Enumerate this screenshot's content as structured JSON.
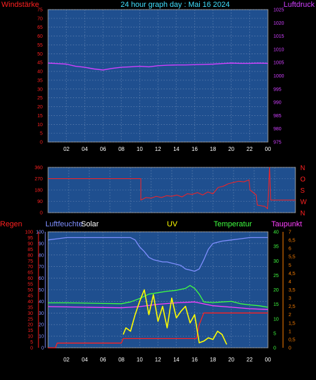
{
  "title": "24 hour graph day : Mai 16 2024",
  "colors": {
    "panel_bg": "#1f4f8f",
    "grid": "#5f80b0",
    "wind": "#ff2020",
    "gust": "#40e0ff",
    "pressure": "#d040ff",
    "direction": "#ff2020",
    "rain": "#ff2020",
    "humidity": "#7f8fff",
    "solar": "#ffffff",
    "uv": "#ffff00",
    "temperature": "#40ff40",
    "dewpoint": "#ff40ff",
    "frame": "#a0a0a0"
  },
  "x_ticks": [
    "02",
    "04",
    "06",
    "08",
    "10",
    "12",
    "14",
    "16",
    "18",
    "20",
    "22",
    "00"
  ],
  "chart_data": [
    {
      "type": "line",
      "name": "wind-pressure",
      "labels": {
        "left": "Windstärke",
        "right": "Luftdruck"
      },
      "left_axis": {
        "ticks": [
          "0",
          "5",
          "10",
          "15",
          "20",
          "25",
          "30",
          "35",
          "40",
          "45",
          "50",
          "55",
          "60",
          "65",
          "70",
          "75"
        ],
        "ylim": [
          0,
          75
        ]
      },
      "right_axis": {
        "ticks": [
          "975",
          "980",
          "985",
          "990",
          "995",
          "1000",
          "1005",
          "1010",
          "1015",
          "1020",
          "1025"
        ],
        "ylim": [
          975,
          1025
        ]
      },
      "series": [
        {
          "key": "pressure",
          "axis": "right",
          "x": [
            0,
            1,
            2,
            3,
            4,
            5,
            6,
            7,
            8,
            9,
            10,
            11,
            12,
            13,
            14,
            15,
            16,
            17,
            18,
            19,
            20,
            21,
            22,
            23,
            24
          ],
          "y": [
            1004.8,
            1004.6,
            1004.4,
            1003.6,
            1003.2,
            1002.6,
            1002.2,
            1002.8,
            1003.2,
            1003.4,
            1003.6,
            1003.4,
            1003.8,
            1004.0,
            1004.1,
            1004.1,
            1004.2,
            1004.3,
            1004.4,
            1004.6,
            1004.8,
            1004.7,
            1004.7,
            1004.8,
            1004.7
          ]
        }
      ]
    },
    {
      "type": "line",
      "name": "wind-direction",
      "left_axis": {
        "ticks": [
          "0",
          "90",
          "180",
          "270",
          "360"
        ],
        "ylim": [
          0,
          360
        ]
      },
      "right_labels": [
        "N",
        "W",
        "S",
        "O",
        "N"
      ],
      "series": [
        {
          "key": "direction",
          "x": [
            0,
            9.0,
            9.0,
            9.5,
            10,
            10.5,
            11,
            11.5,
            12,
            12.5,
            13,
            13.5,
            14,
            14.5,
            15,
            15.5,
            16,
            16.5,
            17,
            17.5,
            18,
            18.5,
            19,
            19.5,
            19.6,
            20.2,
            20.3,
            21.0,
            21.2,
            21.3,
            21.5,
            21.6,
            24
          ],
          "y": [
            270,
            270,
            100,
            120,
            115,
            130,
            120,
            135,
            130,
            140,
            125,
            150,
            145,
            160,
            140,
            165,
            150,
            200,
            210,
            230,
            240,
            250,
            245,
            260,
            180,
            140,
            60,
            50,
            40,
            30,
            360,
            100,
            100
          ]
        }
      ]
    },
    {
      "type": "line",
      "name": "rain-humidity-solar-uv-temperature-dewpoint",
      "labels": {
        "rain": "Regen",
        "humidity": "Luftfeuchte",
        "solar": "Solar",
        "uv": "UV",
        "temperature": "Temperatur",
        "dewpoint": "Taupunkt"
      },
      "rain_axis": {
        "ticks": [
          "0",
          "5",
          "10",
          "15",
          "20",
          "25",
          "30",
          "35",
          "40",
          "45",
          "50",
          "55",
          "60",
          "65",
          "70",
          "75",
          "80",
          "85",
          "90",
          "95",
          "100"
        ],
        "ylim": [
          0,
          100
        ]
      },
      "humidity_axis": {
        "ticks": [
          "0",
          "10",
          "20",
          "30",
          "40",
          "50",
          "60",
          "70",
          "80",
          "90",
          "100"
        ],
        "ylim": [
          0,
          100
        ]
      },
      "temperature_axis": {
        "ticks": [
          "0",
          "5",
          "10",
          "15",
          "20",
          "25",
          "30",
          "35",
          "40"
        ],
        "ylim": [
          0,
          40
        ]
      },
      "uv_axis": {
        "ticks": [
          "0",
          "0,5",
          "1",
          "1,5",
          "2",
          "2,5",
          "3",
          "3,5",
          "4",
          "4,5",
          "5",
          "5,5",
          "6",
          "6,5",
          "7"
        ],
        "ylim": [
          0,
          7
        ]
      },
      "series": [
        {
          "key": "humidity",
          "axis": "humidity",
          "x": [
            0,
            1,
            2,
            3,
            4,
            5,
            6,
            7,
            8,
            9,
            9.5,
            10,
            10.5,
            11,
            11.5,
            12,
            12.5,
            13,
            13.5,
            14,
            14.5,
            15,
            15.5,
            16,
            16.5,
            17,
            17.5,
            18,
            19,
            20,
            21,
            22,
            23,
            24
          ],
          "y": [
            93,
            94,
            95,
            95,
            95,
            95,
            95,
            95,
            95,
            95,
            93,
            87,
            83,
            78,
            76,
            75,
            74,
            74,
            73,
            72,
            71,
            68,
            67,
            66,
            68,
            76,
            85,
            90,
            92,
            93,
            94,
            95,
            95,
            95
          ]
        },
        {
          "key": "temperature",
          "axis": "temperature",
          "x": [
            0,
            2,
            4,
            6,
            8,
            9,
            10,
            11,
            12,
            13,
            14,
            15,
            15.5,
            16,
            16.5,
            17,
            18,
            19,
            20,
            21,
            22,
            23,
            24
          ],
          "y": [
            15.5,
            15.5,
            15.4,
            15.3,
            15.2,
            15.8,
            17.0,
            18.5,
            19.0,
            19.5,
            19.8,
            20.5,
            21.5,
            20.5,
            18.5,
            15.8,
            15.6,
            15.8,
            16.0,
            15.2,
            14.8,
            14.5,
            14.0
          ]
        },
        {
          "key": "dewpoint",
          "axis": "temperature",
          "x": [
            0,
            4,
            8,
            10,
            12,
            14,
            16,
            18,
            20,
            22,
            24
          ],
          "y": [
            14.2,
            14.0,
            13.8,
            14.2,
            15.0,
            15.5,
            15.8,
            14.5,
            14.0,
            13.5,
            13.2
          ]
        },
        {
          "key": "rain",
          "axis": "rain",
          "x": [
            0,
            0.8,
            1.0,
            8.0,
            8.2,
            16.2,
            16.5,
            17.0,
            24
          ],
          "y": [
            0,
            0,
            4,
            4,
            8,
            8,
            20,
            30,
            30
          ]
        },
        {
          "key": "uv",
          "axis": "uv",
          "x": [
            8.2,
            8.5,
            9.0,
            9.5,
            10.0,
            10.5,
            11.0,
            11.5,
            12.0,
            12.5,
            13.0,
            13.5,
            14.0,
            14.5,
            15.0,
            15.5,
            16.0,
            16.5,
            17.0,
            17.5,
            18.0,
            18.5,
            19.0,
            19.5
          ],
          "y": [
            0.8,
            1.2,
            1.0,
            2.0,
            2.8,
            3.5,
            2.0,
            3.2,
            1.6,
            2.5,
            1.2,
            3.0,
            1.8,
            2.2,
            2.5,
            1.5,
            2.0,
            0.3,
            0.4,
            0.6,
            0.5,
            1.0,
            0.8,
            0.2
          ]
        }
      ]
    }
  ]
}
